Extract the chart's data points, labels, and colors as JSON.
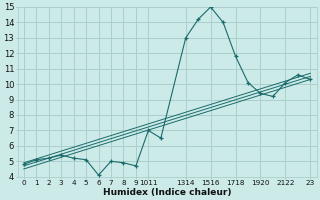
{
  "xlabel": "Humidex (Indice chaleur)",
  "background_color": "#cceae8",
  "grid_color": "#aacfcc",
  "line_color": "#1a6b6b",
  "ylim": [
    4,
    15
  ],
  "xlim": [
    -0.5,
    23.5
  ],
  "series1_x": [
    0,
    1,
    2,
    3,
    4,
    5,
    6,
    7,
    8,
    9,
    10,
    11,
    13,
    14,
    15,
    16,
    17,
    18,
    19,
    20,
    21,
    22,
    23
  ],
  "series1_y": [
    4.8,
    5.1,
    5.2,
    5.4,
    5.2,
    5.1,
    4.1,
    5.0,
    4.9,
    4.7,
    7.0,
    6.5,
    13.0,
    14.2,
    15.0,
    14.0,
    11.8,
    10.1,
    9.4,
    9.2,
    10.1,
    10.6,
    10.3
  ],
  "series2_y_start": 4.5,
  "series2_y_end": 10.3,
  "series3_y_start": 4.7,
  "series3_y_end": 10.5,
  "series4_y_start": 4.9,
  "series4_y_end": 10.7,
  "x_tick_positions": [
    0,
    1,
    2,
    3,
    4,
    5,
    6,
    7,
    8,
    9,
    10,
    13,
    15,
    17,
    19,
    21,
    23
  ],
  "x_tick_labels": [
    "0",
    "1",
    "2",
    "3",
    "4",
    "5",
    "6",
    "7",
    "8",
    "9",
    "1011",
    "1314",
    "1516",
    "1718",
    "1920",
    "2122",
    "23"
  ],
  "y_tick_positions": [
    4,
    5,
    6,
    7,
    8,
    9,
    10,
    11,
    12,
    13,
    14,
    15
  ],
  "y_tick_labels": [
    "4",
    "5",
    "6",
    "7",
    "8",
    "9",
    "10",
    "11",
    "12",
    "13",
    "14",
    "15"
  ]
}
